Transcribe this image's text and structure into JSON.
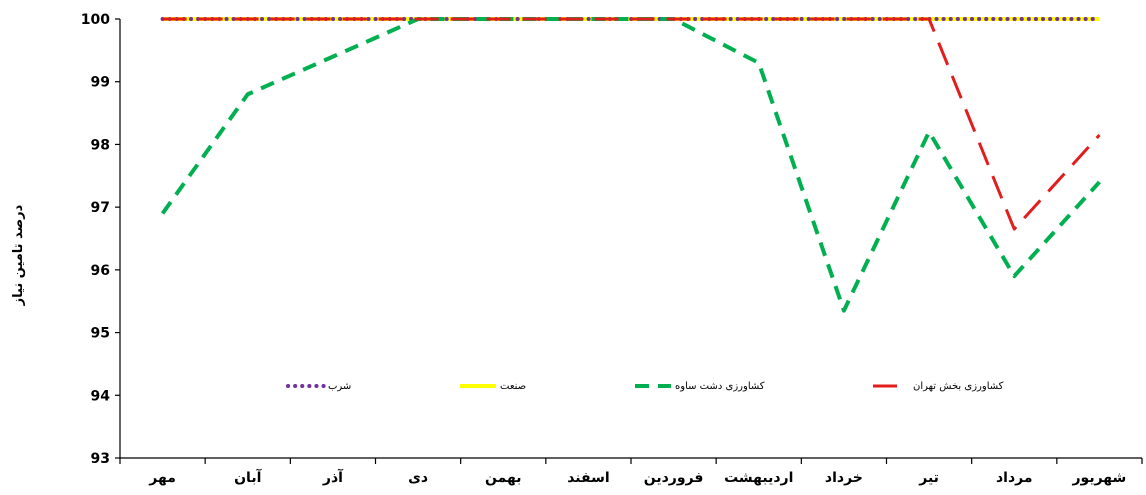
{
  "chart_data": {
    "type": "line",
    "title": "",
    "xlabel": "",
    "ylabel": "درصد تامین نیاز",
    "ylim": [
      93,
      100
    ],
    "yticks": [
      93,
      94,
      95,
      96,
      97,
      98,
      99,
      100
    ],
    "grid": false,
    "legend_position": "inside-bottom",
    "categories": [
      "مهر",
      "آبان",
      "آذر",
      "دی",
      "بهمن",
      "اسفند",
      "فروردین",
      "اردیبهشت",
      "خرداد",
      "تیر",
      "مرداد",
      "شهریور"
    ],
    "series": [
      {
        "name": "شرب",
        "color": "#7030a0",
        "style": "dotted",
        "values": [
          100,
          100,
          100,
          100,
          100,
          100,
          100,
          100,
          100,
          100,
          100,
          100
        ]
      },
      {
        "name": "صنعت",
        "color": "#ffff00",
        "style": "solid",
        "values": [
          100,
          100,
          100,
          100,
          100,
          100,
          100,
          100,
          100,
          100,
          100,
          100
        ]
      },
      {
        "name": "کشاورزی دشت ساوه",
        "color": "#00b050",
        "style": "dashed",
        "values": [
          96.9,
          98.8,
          99.4,
          100,
          100,
          100,
          100,
          99.3,
          95.35,
          98.2,
          95.9,
          97.4
        ]
      },
      {
        "name": "کشاورزی بخش تهران",
        "color": "#e21d1d",
        "style": "longdash",
        "values": [
          100,
          100,
          100,
          100,
          100,
          100,
          100,
          100,
          100,
          100,
          96.65,
          98.15
        ]
      }
    ]
  }
}
